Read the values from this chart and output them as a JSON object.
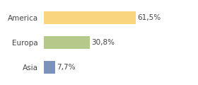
{
  "categories": [
    "America",
    "Europa",
    "Asia"
  ],
  "values": [
    61.5,
    30.8,
    7.7
  ],
  "labels": [
    "61,5%",
    "30,8%",
    "7,7%"
  ],
  "bar_colors": [
    "#f9d57e",
    "#b5c98a",
    "#7b93bb"
  ],
  "background_color": "#ffffff",
  "xlim": [
    0,
    100
  ],
  "label_fontsize": 7.5,
  "tick_fontsize": 7.5,
  "bar_height": 0.52
}
